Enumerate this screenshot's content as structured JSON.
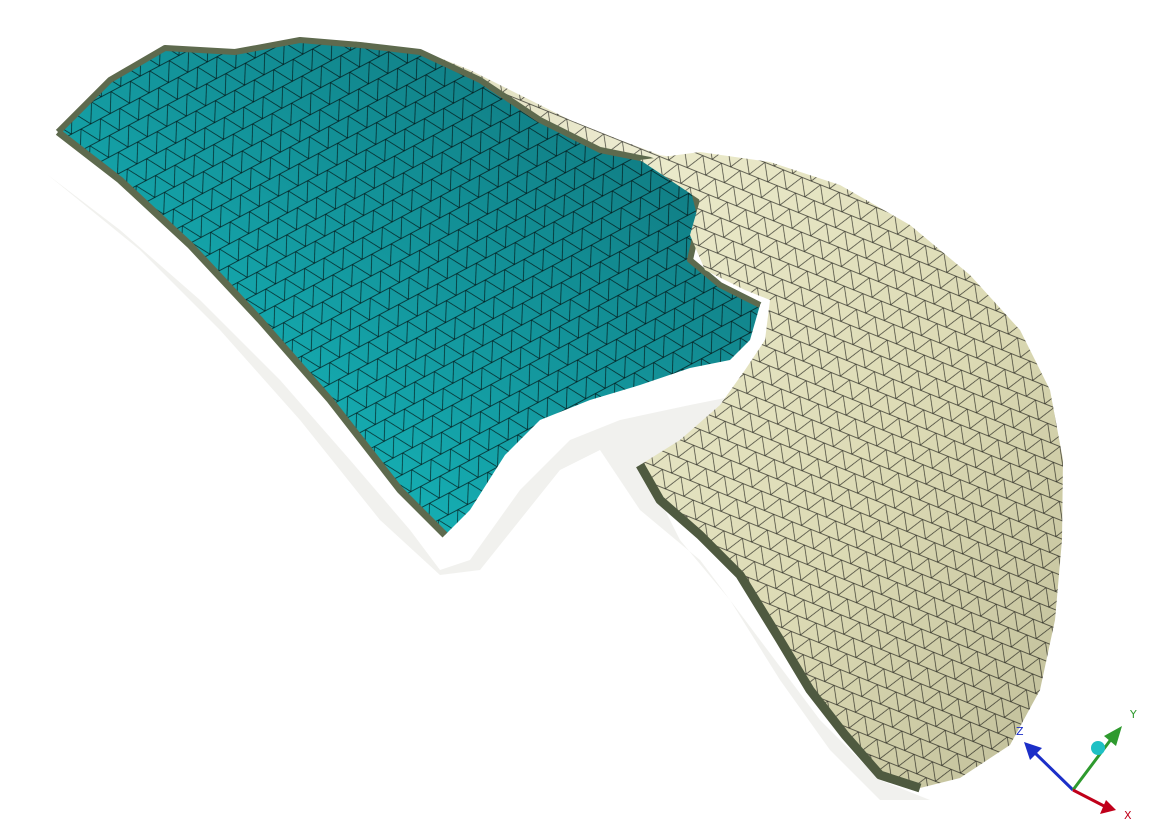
{
  "viewport": {
    "background": "#ffffff",
    "mesh": {
      "inner_surface_color": "#1fc0c4",
      "outer_surface_color": "#e2e2be",
      "edge_color": "#000000",
      "rim_color": "#5e6a4e",
      "shadow_color": "#ececec"
    },
    "triad": {
      "x_label": "X",
      "y_label": "Y",
      "z_label": "Z",
      "x_color": "#c0001a",
      "y_color": "#2e9a2e",
      "z_color": "#1c2fc8",
      "origin_color": "#1fc0c4"
    }
  }
}
